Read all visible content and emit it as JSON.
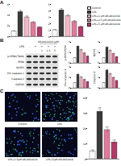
{
  "panel_labels": [
    "A",
    "B",
    "C"
  ],
  "chart_data": [
    {
      "type": "bar",
      "categories": [
        null,
        null,
        null,
        null,
        null
      ],
      "values": [
        1,
        4.6,
        3.6,
        2.6,
        1.7
      ],
      "errors": [
        0.1,
        0.3,
        0.25,
        0.2,
        0.15
      ],
      "colors": [
        "#ffffff",
        "#3a3a3a",
        "#f2b8c6",
        "#e07a9b",
        "#b03a68"
      ],
      "ylim": [
        0,
        6
      ],
      "yticks": [
        0,
        2,
        4,
        6
      ],
      "tick_labels": "y"
    },
    {
      "type": "bar",
      "categories": [
        "Control",
        "LPS",
        "LPS+1 μM AR-A014418",
        "LPS+2.5 μM AR-A014418",
        "LPS+5 μM AR-A014418"
      ],
      "values": [
        1,
        4.1,
        3.2,
        2.3,
        1.5
      ],
      "errors": [
        0.1,
        0.25,
        0.2,
        0.2,
        0.12
      ],
      "colors": [
        "#ffffff",
        "#3a3a3a",
        "#f2b8c6",
        "#e07a9b",
        "#b03a68"
      ],
      "ylim": [
        0,
        5
      ],
      "yticks": [
        0,
        1,
        2,
        3,
        4,
        5
      ],
      "tick_labels": "y",
      "legend": "right"
    },
    {
      "type": "bar",
      "ylabel": "p-PERK/PERK",
      "categories": [
        null,
        null,
        null,
        null,
        null
      ],
      "values": [
        1,
        3.2,
        2.5,
        1.9,
        1.3
      ],
      "errors": [
        0.1,
        0.2,
        0.2,
        0.15,
        0.1
      ],
      "colors": [
        "#ffffff",
        "#3a3a3a",
        "#f2b8c6",
        "#e07a9b",
        "#b03a68"
      ],
      "ylim": [
        0,
        4
      ],
      "yticks": [
        0,
        2,
        4
      ],
      "tick_labels": "y"
    },
    {
      "type": "bar",
      "ylabel": "NLRP3",
      "categories": [
        null,
        null,
        null,
        null,
        null
      ],
      "values": [
        1,
        3.0,
        2.4,
        1.8,
        1.2
      ],
      "errors": [
        0.1,
        0.2,
        0.2,
        0.15,
        0.1
      ],
      "colors": [
        "#ffffff",
        "#3a3a3a",
        "#f2b8c6",
        "#e07a9b",
        "#b03a68"
      ],
      "ylim": [
        0,
        4
      ],
      "yticks": [
        0,
        2,
        4
      ],
      "tick_labels": "y"
    },
    {
      "type": "bar",
      "ylabel": "Pro-caspase-1",
      "categories": [
        null,
        null,
        null,
        null,
        null
      ],
      "values": [
        1,
        2.6,
        2.1,
        1.6,
        1.2
      ],
      "errors": [
        0.1,
        0.2,
        0.15,
        0.15,
        0.1
      ],
      "colors": [
        "#ffffff",
        "#3a3a3a",
        "#f2b8c6",
        "#e07a9b",
        "#b03a68"
      ],
      "ylim": [
        0,
        4
      ],
      "yticks": [
        0,
        2,
        4
      ],
      "tick_labels": "y"
    },
    {
      "type": "bar",
      "ylabel": "Caspase-1",
      "categories": [
        null,
        null,
        null,
        null,
        null
      ],
      "values": [
        1,
        3.4,
        2.7,
        2.0,
        1.4
      ],
      "errors": [
        0.1,
        0.25,
        0.2,
        0.15,
        0.1
      ],
      "colors": [
        "#ffffff",
        "#3a3a3a",
        "#f2b8c6",
        "#e07a9b",
        "#b03a68"
      ],
      "ylim": [
        0,
        4
      ],
      "yticks": [
        0,
        2,
        4
      ],
      "tick_labels": "y"
    },
    {
      "type": "bar",
      "categories": [
        "Control",
        "LPS",
        "LPS+2.5μM AR-A014418",
        "LPS+5μM AR-A014418"
      ],
      "values": [
        5,
        31,
        19,
        11
      ],
      "errors": [
        1,
        2.5,
        2,
        1.5
      ],
      "colors": [
        "#ffffff",
        "#3a3a3a",
        "#e07a9b",
        "#b03a68"
      ],
      "ylim": [
        0,
        40
      ],
      "yticks": [
        0,
        10,
        20,
        30,
        40
      ],
      "tick_labels": "y"
    }
  ],
  "blot": {
    "header": "AR-A014418 (μM)",
    "row_label": "LPS",
    "lps": [
      "-",
      "+",
      "+",
      "+",
      "+"
    ],
    "dose": [
      "-",
      "-",
      "1",
      "2.5",
      "5"
    ],
    "bands": [
      "p-PERK(T980)",
      "PERK",
      "NLRP3",
      "Pro-caspase-1",
      "Caspase-1",
      "GAPDH"
    ]
  }
}
